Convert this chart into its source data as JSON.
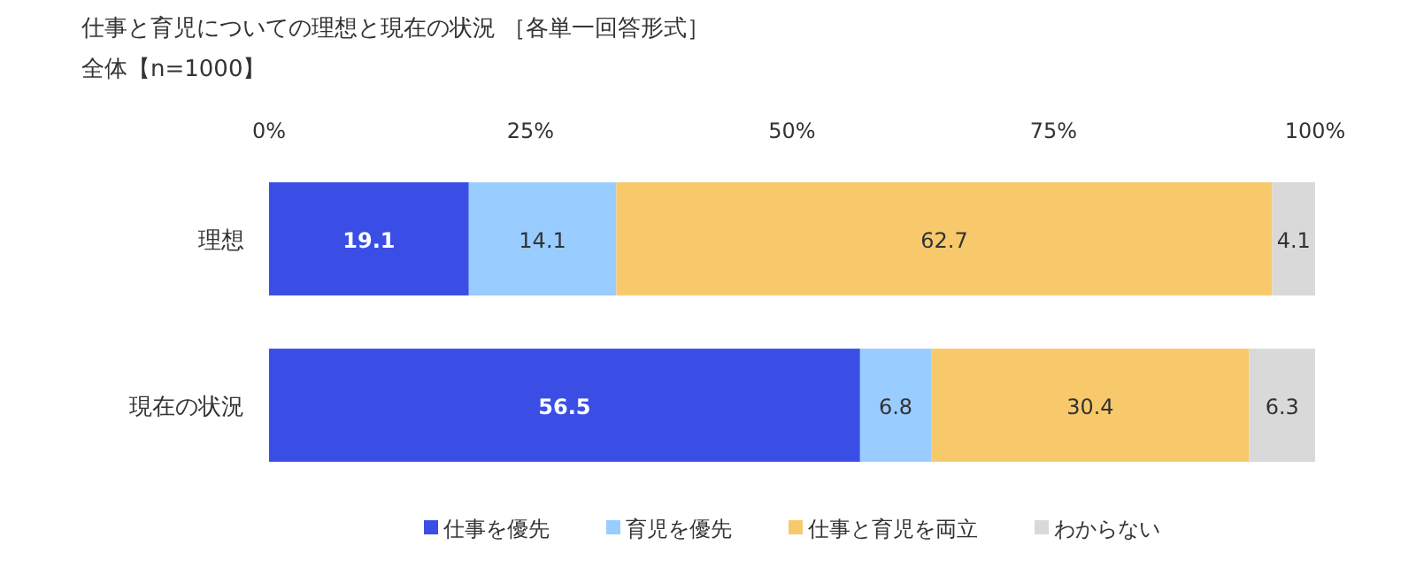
{
  "chart_data": {
    "type": "bar",
    "orientation": "horizontal",
    "stacked": true,
    "title": "仕事と育児についての理想と現在の状況 ［各単一回答形式］",
    "subtitle": "全体【n=1000】",
    "categories": [
      "理想",
      "現在の状況"
    ],
    "series": [
      {
        "name": "仕事を優先",
        "color": "#3a4ee6",
        "values": [
          19.1,
          56.5
        ]
      },
      {
        "name": "育児を優先",
        "color": "#99ccff",
        "values": [
          14.1,
          6.8
        ]
      },
      {
        "name": "仕事と育児を両立",
        "color": "#f8c96b",
        "values": [
          62.7,
          30.4
        ]
      },
      {
        "name": "わからない",
        "color": "#d9d9d9",
        "values": [
          4.1,
          6.3
        ]
      }
    ],
    "xlim": [
      0,
      100
    ],
    "xticks": [
      {
        "value": 0,
        "label": "0%"
      },
      {
        "value": 25,
        "label": "25%"
      },
      {
        "value": 50,
        "label": "50%"
      },
      {
        "value": 75,
        "label": "75%"
      },
      {
        "value": 100,
        "label": "100%"
      }
    ],
    "data_labels": true,
    "legend": "bottom"
  }
}
